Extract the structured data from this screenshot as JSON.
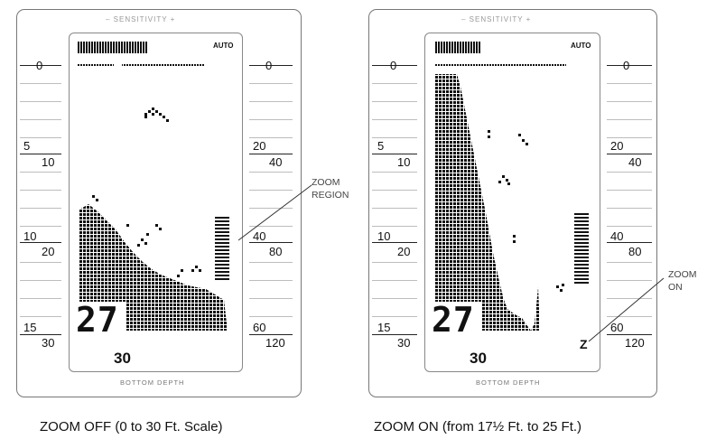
{
  "panels": [
    {
      "id": "zoom-off",
      "sensitivity": "– SENSITIVITY +",
      "auto": "AUTO",
      "left_scale": [
        "0",
        "5",
        "10",
        "10",
        "20",
        "15",
        "30"
      ],
      "right_scale": [
        "0",
        "20",
        "40",
        "40",
        "80",
        "60",
        "120"
      ],
      "digital_depth": "27",
      "bottom_readout": "30",
      "bottom_label": "BOTTOM DEPTH",
      "caption": "ZOOM OFF (0 to 30 Ft. Scale)"
    },
    {
      "id": "zoom-on",
      "sensitivity": "– SENSITIVITY +",
      "auto": "AUTO",
      "left_scale": [
        "0",
        "5",
        "10",
        "10",
        "20",
        "15",
        "30"
      ],
      "right_scale": [
        "0",
        "20",
        "40",
        "40",
        "80",
        "60",
        "120"
      ],
      "digital_depth": "27",
      "bottom_readout": "30",
      "zoom_marker": "Z",
      "bottom_label": "BOTTOM DEPTH",
      "caption": "ZOOM ON (from 17½ Ft. to 25 Ft.)"
    }
  ],
  "callouts": {
    "zoom_region": [
      "ZOOM",
      "REGION"
    ],
    "zoom_on": [
      "ZOOM",
      "ON"
    ]
  },
  "colors": {
    "ink": "#111111",
    "frame": "#777777",
    "tick": "#bdbdbd"
  }
}
